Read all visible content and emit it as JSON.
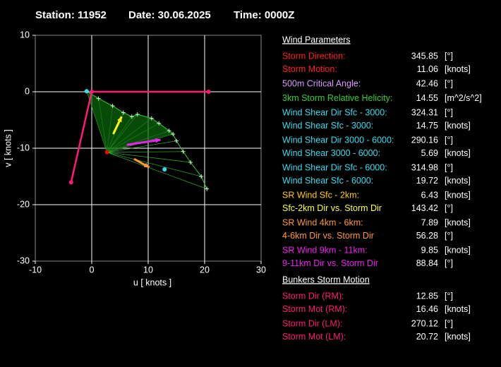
{
  "chart_data": {
    "type": "hodograph",
    "title": [
      "Station: 11952",
      "Date: 30.06.2025",
      "Time: 0000Z"
    ],
    "xlabel": "u  [ knots ]",
    "ylabel": "v  [ knots ]",
    "xlim": [
      -10,
      30
    ],
    "ylim": [
      -30,
      10
    ],
    "xticks": [
      -10,
      0,
      10,
      20,
      30
    ],
    "yticks": [
      -30,
      -20,
      -10,
      0,
      10
    ],
    "grid": true,
    "series": [
      {
        "color": "#33cc33",
        "marker": "plus",
        "width": 1,
        "fan": true,
        "x": [
          -0.9,
          1.2,
          3.7,
          5.6,
          7.1,
          8.1,
          10.6,
          11.9,
          13.7,
          14.4,
          15,
          16.2,
          17.5,
          19.4,
          20.4
        ],
        "values": [
          0.1,
          -1.2,
          -2.5,
          -3.7,
          -4.4,
          -4,
          -4.7,
          -5.6,
          -6.9,
          -7.5,
          -8.7,
          -10.6,
          -12.5,
          -15,
          -17.2
        ]
      },
      {
        "color": "#ff1a75",
        "marker": "dot",
        "width": 2.5,
        "x": [
          20.7,
          0,
          -3.66
        ],
        "values": [
          0,
          0,
          -16.05
        ]
      },
      {
        "color": "#ff0000",
        "marker": "dot",
        "width": 0,
        "x": [
          2.7
        ],
        "values": [
          -10.72
        ]
      },
      {
        "color": "#33ddee",
        "marker": "dot",
        "width": 0,
        "x": [
          -0.9,
          12.9
        ],
        "values": [
          0.1,
          -13.75
        ]
      },
      {
        "color": "#ffff00",
        "marker": "none",
        "width": 3,
        "arrow": true,
        "x": [
          3.8,
          5.3
        ],
        "values": [
          -7.5,
          -4.4
        ]
      },
      {
        "color": "#ff9933",
        "marker": "none",
        "width": 3,
        "arrow": true,
        "x": [
          7.5,
          10.2
        ],
        "values": [
          -11.9,
          -13.4
        ]
      },
      {
        "color": "#ee22ee",
        "marker": "none",
        "width": 3,
        "arrow": true,
        "x": [
          6.2,
          12.2
        ],
        "values": [
          -9.4,
          -8.5
        ]
      }
    ]
  },
  "panel": {
    "sections": [
      {
        "title": "Wind Parameters",
        "groups": [
          [
            {
              "label": "Storm Direction:",
              "value": 345.85,
              "unit": "[°]",
              "color": "#ff2020"
            },
            {
              "label": "Storm Motion:",
              "value": 11.06,
              "unit": "[knots]",
              "color": "#ff2020"
            }
          ],
          [
            {
              "label": "500m Critical Angle:",
              "value": 42.46,
              "unit": "[°]",
              "color": "#dd99ff"
            }
          ],
          [
            {
              "label": "3km Storm Relative Helicity:",
              "value": 14.55,
              "unit": "[m^2/s^2]",
              "color": "#33cc33"
            }
          ],
          [
            {
              "label": "Wind Shear Dir Sfc - 3000:",
              "value": 324.31,
              "unit": "[°]",
              "color": "#33ddee"
            },
            {
              "label": "Wind Shear Sfc - 3000:",
              "value": 14.75,
              "unit": "[knots]",
              "color": "#33ddee"
            }
          ],
          [
            {
              "label": "Wind Shear Dir 3000 - 6000:",
              "value": 290.16,
              "unit": "[°]",
              "color": "#33ddee"
            },
            {
              "label": "Wind Shear 3000 - 6000:",
              "value": 5.69,
              "unit": "[knots]",
              "color": "#33ddee"
            }
          ],
          [
            {
              "label": "Wind Shear Dir Sfc - 6000:",
              "value": 314.98,
              "unit": "[°]",
              "color": "#33ddee"
            },
            {
              "label": "Wind Shear Sfc - 6000:",
              "value": 19.72,
              "unit": "[knots]",
              "color": "#33ddee"
            }
          ],
          [
            {
              "label": "SR Wind Sfc - 2km:",
              "value": 6.43,
              "unit": "[knots]",
              "color": "#ffcc00"
            },
            {
              "label": "Sfc-2km Dir vs. Storm Dir",
              "value": 143.42,
              "unit": "[°]",
              "color": "#ffff33"
            }
          ],
          [
            {
              "label": "SR Wind 4km - 6km:",
              "value": 7.89,
              "unit": "[knots]",
              "color": "#ff9933"
            },
            {
              "label": "4-6km Dir vs. Storm Dir",
              "value": 56.28,
              "unit": "[°]",
              "color": "#ff9933"
            }
          ],
          [
            {
              "label": "SR Wind 9km - 11km:",
              "value": 9.85,
              "unit": "[knots]",
              "color": "#ee22ee"
            },
            {
              "label": "9-11km Dir vs. Storm Dir",
              "value": 88.84,
              "unit": "[°]",
              "color": "#ee22ee"
            }
          ]
        ]
      },
      {
        "title": "Bunkers Storm Motion",
        "groups": [
          [
            {
              "label": "Storm Dir (RM):",
              "value": 12.85,
              "unit": "[°]",
              "color": "#ff1a75"
            },
            {
              "label": "Storm Mot (RM):",
              "value": 16.46,
              "unit": "[knots]",
              "color": "#ff1a75"
            }
          ],
          [
            {
              "label": "Storm Dir (LM):",
              "value": 270.12,
              "unit": "[°]",
              "color": "#ff1a75"
            },
            {
              "label": "Storm Mot (LM):",
              "value": 20.72,
              "unit": "[knots]",
              "color": "#ff1a75"
            }
          ]
        ]
      }
    ]
  }
}
